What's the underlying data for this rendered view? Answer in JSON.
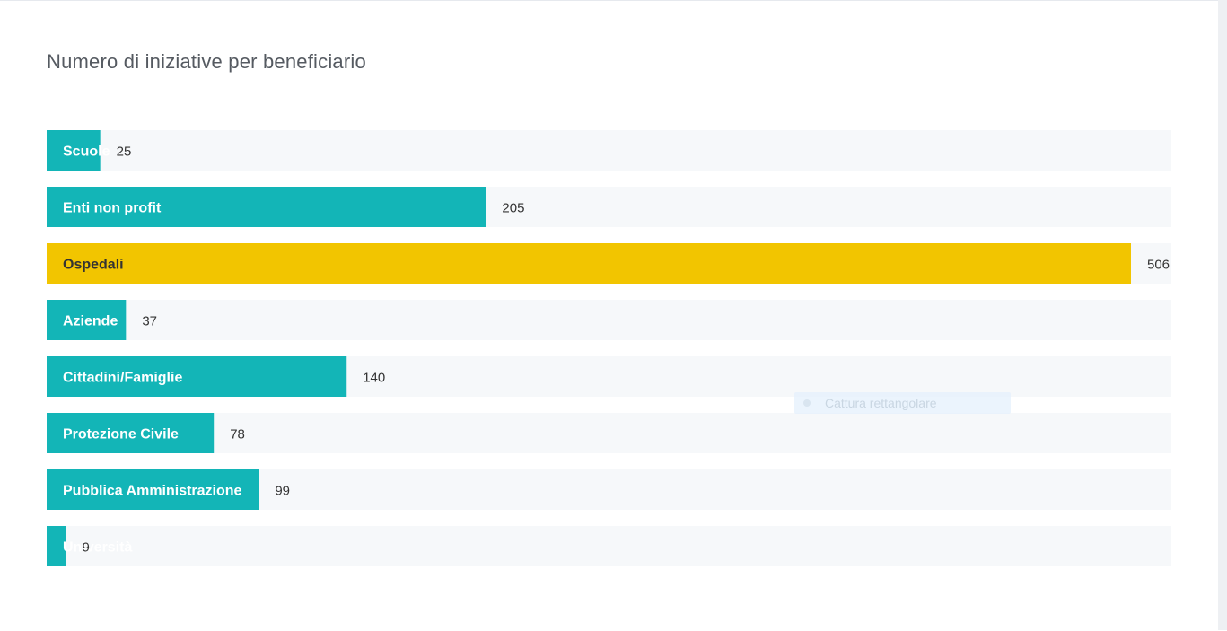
{
  "chart_data": {
    "type": "bar",
    "orientation": "horizontal",
    "title": "Numero di iniziative per beneficiario",
    "categories": [
      "Scuole",
      "Enti non profit",
      "Ospedali",
      "Aziende",
      "Cittadini/Famiglie",
      "Protezione Civile",
      "Pubblica Amministrazione",
      "Università"
    ],
    "values": [
      25,
      205,
      506,
      37,
      140,
      78,
      99,
      9
    ],
    "highlighted_category": "Ospedali",
    "grid": false,
    "legend": "none"
  },
  "colors": {
    "bar": "#13b5b7",
    "highlight": "#f2c500",
    "track": "#f6f8fa",
    "bar_text": "#ffffff",
    "highlight_text": "#333333",
    "value_text": "#333333",
    "title": "#555a61"
  },
  "overlay": {
    "label": "Cattura rettangolare",
    "icon": "record-dot-icon"
  }
}
